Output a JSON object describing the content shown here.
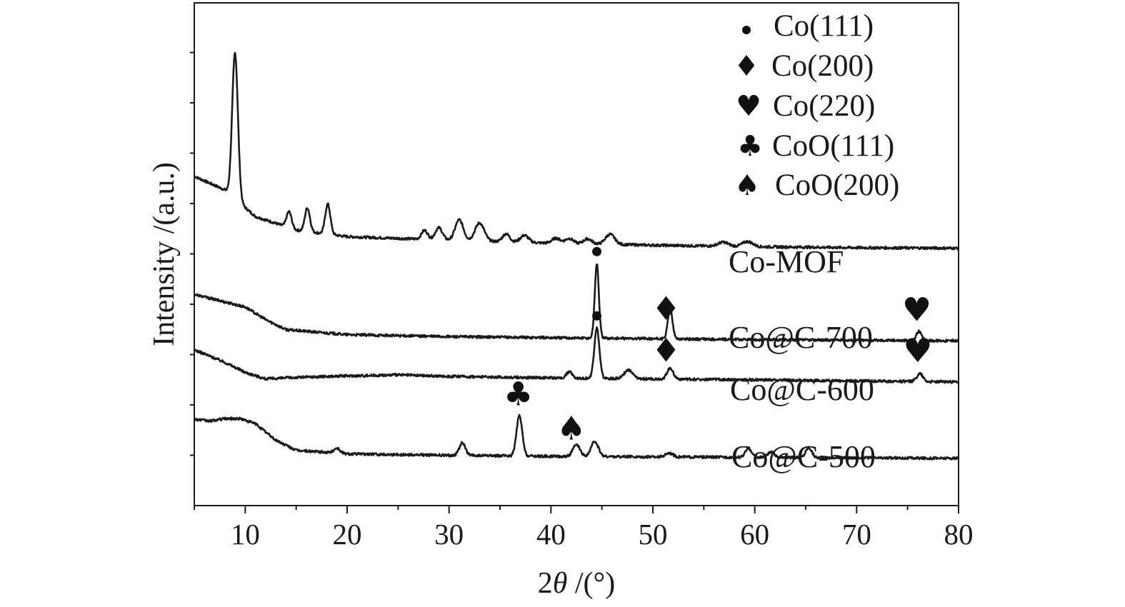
{
  "chart_data": {
    "type": "line",
    "xlabel": "2θ /(°)",
    "ylabel": "Intensity /(a.u.)",
    "xlim": [
      5,
      80
    ],
    "xticks": [
      10,
      20,
      30,
      40,
      50,
      60,
      70,
      80
    ],
    "y_tick_labels_shown": false,
    "grid": false,
    "legend_position": "top-right",
    "legend": [
      {
        "symbol": "circle",
        "label": "Co(111)"
      },
      {
        "symbol": "diamond",
        "label": "Co(200)"
      },
      {
        "symbol": "heart",
        "label": "Co(220)"
      },
      {
        "symbol": "club",
        "label": "CoO(111)"
      },
      {
        "symbol": "spade",
        "label": "CoO(200)"
      }
    ],
    "series": [
      {
        "name": "Co-MOF",
        "color": "#1a1a1a",
        "baseline": [
          [
            5,
            0.655
          ],
          [
            8,
            0.628
          ],
          [
            11,
            0.575
          ],
          [
            15,
            0.548
          ],
          [
            20,
            0.535
          ],
          [
            30,
            0.528
          ],
          [
            40,
            0.522
          ],
          [
            50,
            0.518
          ],
          [
            60,
            0.515
          ],
          [
            70,
            0.513
          ],
          [
            80,
            0.512
          ]
        ],
        "peaks": [
          {
            "x": 9.0,
            "height": 0.29,
            "width": 0.28
          },
          {
            "x": 14.3,
            "height": 0.032,
            "width": 0.25
          },
          {
            "x": 16.1,
            "height": 0.047,
            "width": 0.25
          },
          {
            "x": 18.1,
            "height": 0.06,
            "width": 0.25
          },
          {
            "x": 27.6,
            "height": 0.018,
            "width": 0.3
          },
          {
            "x": 29.0,
            "height": 0.024,
            "width": 0.35
          },
          {
            "x": 31.0,
            "height": 0.041,
            "width": 0.4
          },
          {
            "x": 33.0,
            "height": 0.036,
            "width": 0.45
          },
          {
            "x": 35.6,
            "height": 0.016,
            "width": 0.35
          },
          {
            "x": 37.4,
            "height": 0.014,
            "width": 0.4
          },
          {
            "x": 40.5,
            "height": 0.01,
            "width": 0.4
          },
          {
            "x": 41.8,
            "height": 0.01,
            "width": 0.4
          },
          {
            "x": 43.6,
            "height": 0.01,
            "width": 0.4
          },
          {
            "x": 45.8,
            "height": 0.02,
            "width": 0.45
          },
          {
            "x": 56.9,
            "height": 0.008,
            "width": 0.5
          },
          {
            "x": 59.3,
            "height": 0.01,
            "width": 0.5
          }
        ]
      },
      {
        "name": "Co@C-700",
        "color": "#1a1a1a",
        "baseline": [
          [
            5,
            0.42
          ],
          [
            8,
            0.405
          ],
          [
            10,
            0.395
          ],
          [
            12,
            0.37
          ],
          [
            14,
            0.35
          ],
          [
            20,
            0.34
          ],
          [
            30,
            0.336
          ],
          [
            40,
            0.334
          ],
          [
            50,
            0.332
          ],
          [
            60,
            0.33
          ],
          [
            70,
            0.329
          ],
          [
            80,
            0.328
          ]
        ],
        "peaks": [
          {
            "x": 44.5,
            "height": 0.148,
            "width": 0.2
          },
          {
            "x": 51.7,
            "height": 0.063,
            "width": 0.22
          },
          {
            "x": 76.1,
            "height": 0.018,
            "width": 0.25
          }
        ]
      },
      {
        "name": "Co@C-600",
        "color": "#1a1a1a",
        "baseline": [
          [
            5,
            0.31
          ],
          [
            8,
            0.285
          ],
          [
            10,
            0.265
          ],
          [
            12,
            0.252
          ],
          [
            15,
            0.255
          ],
          [
            20,
            0.258
          ],
          [
            25,
            0.26
          ],
          [
            30,
            0.257
          ],
          [
            40,
            0.254
          ],
          [
            50,
            0.252
          ],
          [
            60,
            0.25
          ],
          [
            70,
            0.248
          ],
          [
            80,
            0.246
          ]
        ],
        "peaks": [
          {
            "x": 41.8,
            "height": 0.012,
            "width": 0.3
          },
          {
            "x": 44.5,
            "height": 0.1,
            "width": 0.25
          },
          {
            "x": 47.6,
            "height": 0.017,
            "width": 0.4
          },
          {
            "x": 51.7,
            "height": 0.022,
            "width": 0.3
          },
          {
            "x": 76.2,
            "height": 0.016,
            "width": 0.3
          }
        ]
      },
      {
        "name": "Co@C-500",
        "color": "#1a1a1a",
        "baseline": [
          [
            5,
            0.172
          ],
          [
            6.5,
            0.168
          ],
          [
            8,
            0.173
          ],
          [
            9.5,
            0.173
          ],
          [
            11,
            0.163
          ],
          [
            13,
            0.13
          ],
          [
            15,
            0.11
          ],
          [
            20,
            0.103
          ],
          [
            30,
            0.1
          ],
          [
            40,
            0.098
          ],
          [
            50,
            0.097
          ],
          [
            60,
            0.096
          ],
          [
            70,
            0.095
          ],
          [
            80,
            0.094
          ]
        ],
        "peaks": [
          {
            "x": 19.0,
            "height": 0.01,
            "width": 0.3
          },
          {
            "x": 31.3,
            "height": 0.025,
            "width": 0.3
          },
          {
            "x": 36.9,
            "height": 0.08,
            "width": 0.28
          },
          {
            "x": 42.5,
            "height": 0.023,
            "width": 0.35
          },
          {
            "x": 44.3,
            "height": 0.03,
            "width": 0.35
          },
          {
            "x": 51.6,
            "height": 0.008,
            "width": 0.35
          },
          {
            "x": 59.4,
            "height": 0.018,
            "width": 0.3
          },
          {
            "x": 61.6,
            "height": 0.01,
            "width": 0.35
          },
          {
            "x": 65.3,
            "height": 0.02,
            "width": 0.3
          }
        ]
      }
    ],
    "peak_markers": [
      {
        "symbol": "circle",
        "x": 44.5,
        "series": "Co@C-700"
      },
      {
        "symbol": "diamond",
        "x": 51.3,
        "series": "Co@C-700"
      },
      {
        "symbol": "heart",
        "x": 75.9,
        "series": "Co@C-700"
      },
      {
        "symbol": "circle",
        "x": 44.5,
        "series": "Co@C-600"
      },
      {
        "symbol": "diamond",
        "x": 51.3,
        "series": "Co@C-600"
      },
      {
        "symbol": "heart",
        "x": 76.0,
        "series": "Co@C-600"
      },
      {
        "symbol": "club",
        "x": 36.8,
        "series": "Co@C-500"
      },
      {
        "symbol": "spade",
        "x": 42.0,
        "series": "Co@C-500"
      }
    ]
  }
}
